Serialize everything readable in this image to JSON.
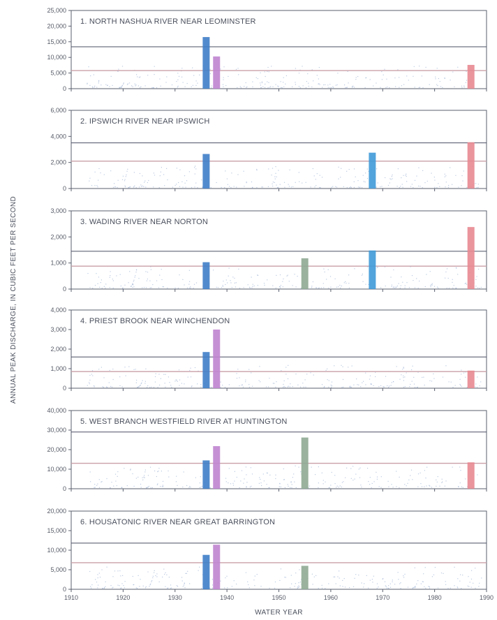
{
  "chart_data": [
    {
      "type": "bar",
      "title": "1.  NORTH NASHUA RIVER NEAR LEOMINSTER",
      "yticks": [
        "0",
        "5,000",
        "10,000",
        "15,000",
        "20,000",
        "25,000"
      ],
      "ylim": [
        0,
        25000
      ],
      "reference_lines": [
        13400,
        5800
      ],
      "bars": [
        {
          "year": 1936,
          "value": 16500,
          "color": "#3f7ec8"
        },
        {
          "year": 1938,
          "value": 10300,
          "color": "#c084d0"
        },
        {
          "year": 1987,
          "value": 7600,
          "color": "#e88890"
        }
      ]
    },
    {
      "type": "bar",
      "title": "2.  IPSWICH RIVER NEAR IPSWICH",
      "yticks": [
        "0",
        "2,000",
        "4,000",
        "6,000"
      ],
      "ylim": [
        0,
        6000
      ],
      "reference_lines": [
        3500,
        2100
      ],
      "bars": [
        {
          "year": 1936,
          "value": 2650,
          "color": "#3f7ec8"
        },
        {
          "year": 1968,
          "value": 2750,
          "color": "#3f9ad8"
        },
        {
          "year": 1987,
          "value": 3550,
          "color": "#e88890"
        }
      ]
    },
    {
      "type": "bar",
      "title": "3.  WADING RIVER NEAR NORTON",
      "yticks": [
        "0",
        "1,000",
        "2,000",
        "3,000"
      ],
      "ylim": [
        0,
        3000
      ],
      "reference_lines": [
        1450,
        880
      ],
      "bars": [
        {
          "year": 1936,
          "value": 1030,
          "color": "#3f7ec8"
        },
        {
          "year": 1955,
          "value": 1180,
          "color": "#8faa94"
        },
        {
          "year": 1968,
          "value": 1480,
          "color": "#3f9ad8"
        },
        {
          "year": 1987,
          "value": 2380,
          "color": "#e88890"
        }
      ]
    },
    {
      "type": "bar",
      "title": "4.  PRIEST BROOK NEAR WINCHENDON",
      "yticks": [
        "0",
        "1,000",
        "2,000",
        "3,000",
        "4,000"
      ],
      "ylim": [
        0,
        4000
      ],
      "reference_lines": [
        1600,
        850
      ],
      "bars": [
        {
          "year": 1936,
          "value": 1850,
          "color": "#3f7ec8"
        },
        {
          "year": 1938,
          "value": 3000,
          "color": "#c084d0"
        },
        {
          "year": 1987,
          "value": 900,
          "color": "#e88890"
        }
      ]
    },
    {
      "type": "bar",
      "title": "5.  WEST BRANCH WESTFIELD RIVER AT HUNTINGTON",
      "yticks": [
        "0",
        "10,000",
        "20,000",
        "30,000",
        "40,000"
      ],
      "ylim": [
        0,
        40000
      ],
      "reference_lines": [
        29000,
        13000
      ],
      "bars": [
        {
          "year": 1936,
          "value": 14500,
          "color": "#3f7ec8"
        },
        {
          "year": 1938,
          "value": 21800,
          "color": "#c084d0"
        },
        {
          "year": 1955,
          "value": 26200,
          "color": "#8faa94"
        },
        {
          "year": 1987,
          "value": 13500,
          "color": "#e88890"
        }
      ]
    },
    {
      "type": "bar",
      "title": "6.  HOUSATONIC RIVER NEAR GREAT BARRINGTON",
      "yticks": [
        "0",
        "5,000",
        "10,000",
        "15,000",
        "20,000"
      ],
      "ylim": [
        0,
        20000
      ],
      "reference_lines": [
        11800,
        6800
      ],
      "bars": [
        {
          "year": 1936,
          "value": 8800,
          "color": "#3f7ec8"
        },
        {
          "year": 1938,
          "value": 11400,
          "color": "#c084d0"
        },
        {
          "year": 1955,
          "value": 6000,
          "color": "#8faa94"
        }
      ]
    }
  ],
  "xaxis": {
    "label": "WATER YEAR",
    "ticks": [
      "1910",
      "1920",
      "1930",
      "1940",
      "1950",
      "1960",
      "1970",
      "1980",
      "1990"
    ],
    "range": [
      1910,
      1990
    ]
  },
  "ylabel": "ANNUAL PEAK DISCHARGE, IN CUBIC FEET PER SECOND",
  "colors": {
    "frame": "#5a5f6e",
    "reference_upper": "#4a4f63",
    "reference_lower": "#c9a0a8",
    "background_points": "#9fb4d4"
  }
}
